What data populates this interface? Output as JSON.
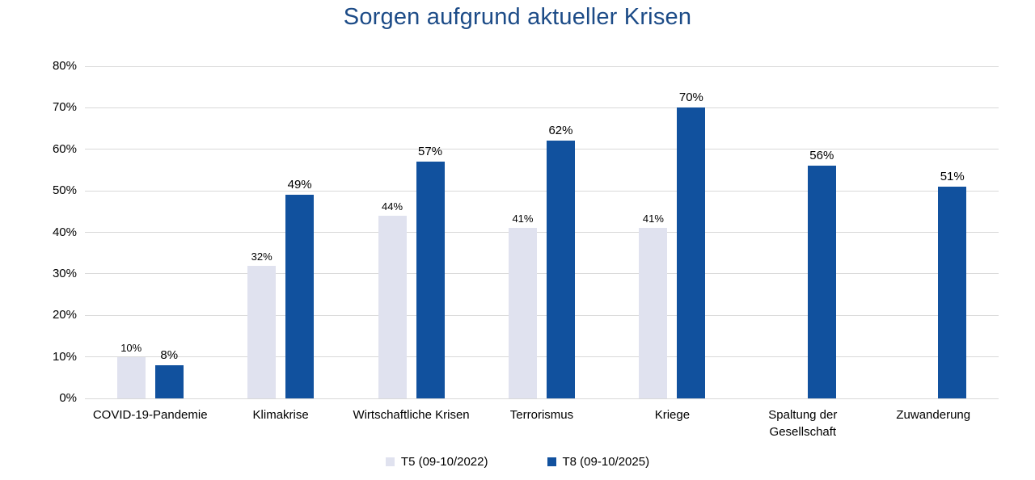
{
  "chart_data": {
    "type": "bar",
    "title": "Sorgen aufgrund aktueller Krisen",
    "categories": [
      "COVID-19-Pandemie",
      "Klimakrise",
      "Wirtschaftliche Krisen",
      "Terrorismus",
      "Kriege",
      "Spaltung der Gesellschaft",
      "Zuwanderung"
    ],
    "series": [
      {
        "name": "T5 (09-10/2022)",
        "color": "#E0E2EF",
        "values": [
          10,
          32,
          44,
          41,
          41,
          null,
          null
        ]
      },
      {
        "name": "T8 (09-10/2025)",
        "color": "#11519E",
        "values": [
          8,
          49,
          57,
          62,
          70,
          56,
          51
        ]
      }
    ],
    "xlabel": "",
    "ylabel": "",
    "ylim": [
      0,
      80
    ],
    "yticks": [
      0,
      10,
      20,
      30,
      40,
      50,
      60,
      70,
      80
    ],
    "ytick_format": "{v}%",
    "value_label_format": "{v}%",
    "grid": "horizontal",
    "legend_position": "bottom",
    "colors": {
      "title": "#1C4B87",
      "grid": "#D9D9D9",
      "text": "#000000",
      "background": "#FFFFFF"
    }
  }
}
